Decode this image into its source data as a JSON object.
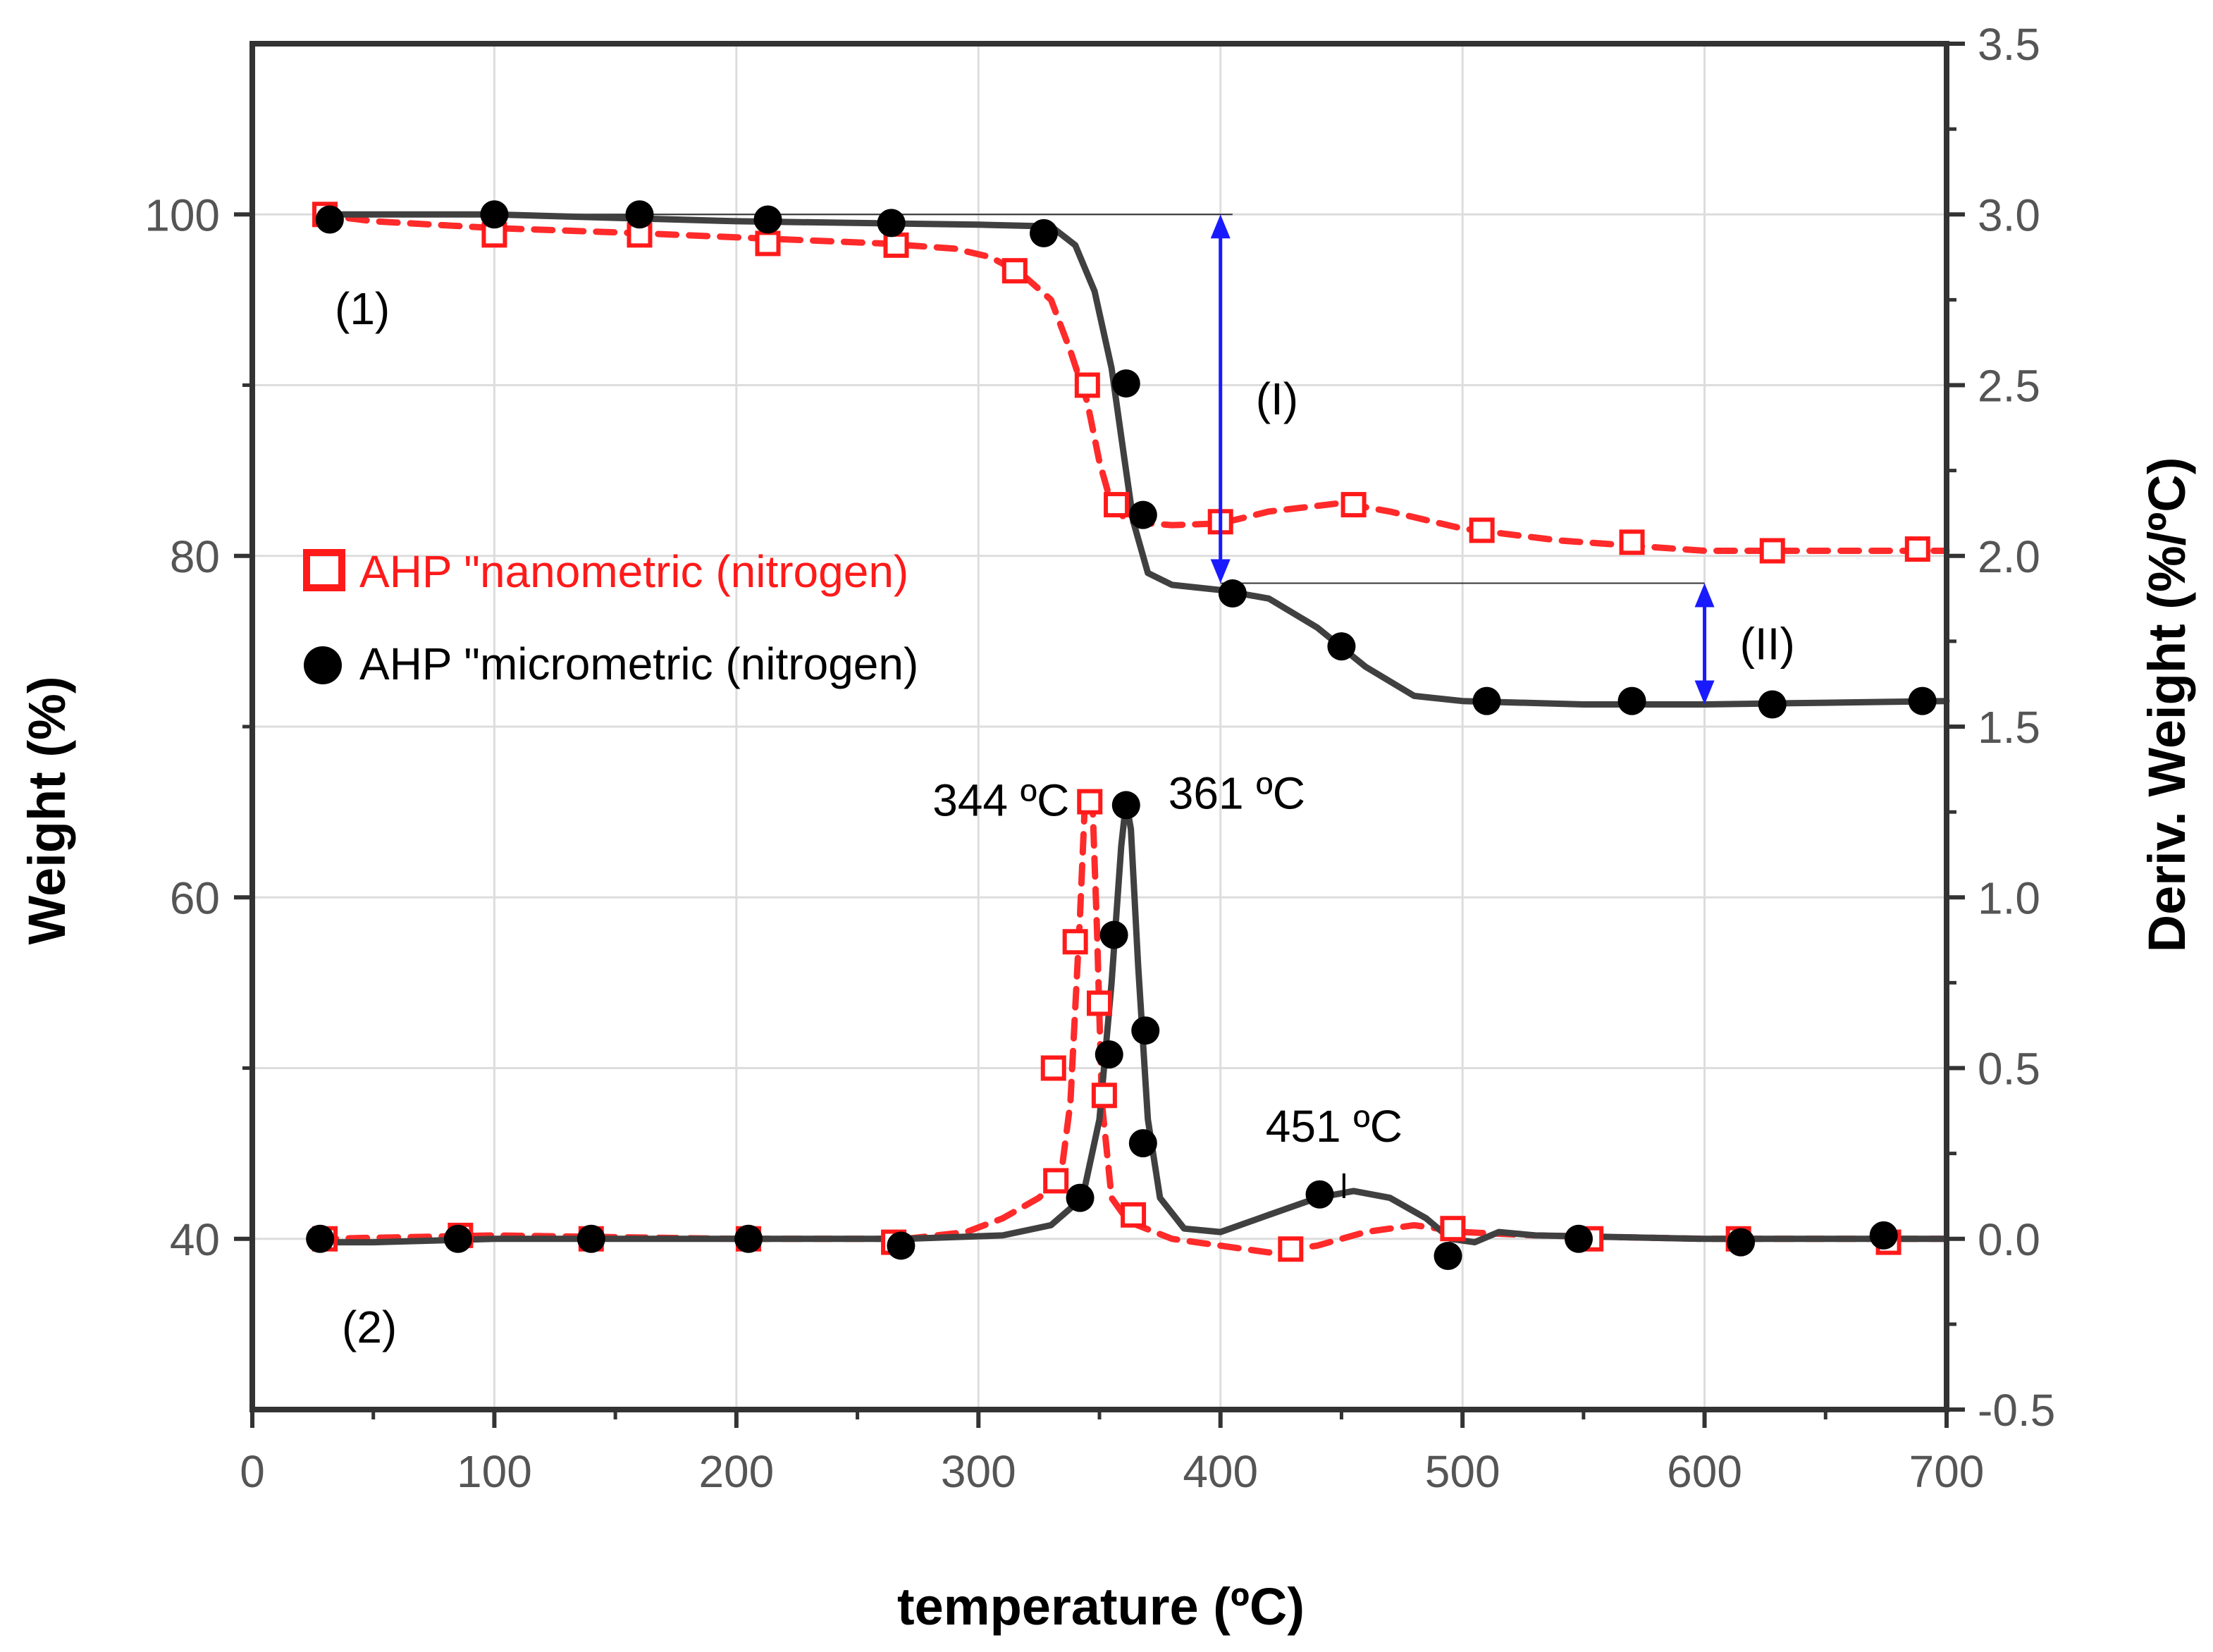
{
  "chart_data": {
    "type": "line",
    "xlabel": "temperature (ºC)",
    "ylabel_left": "Weight (%)",
    "ylabel_right": "Deriv. Weight (%/ºC)",
    "xlim": [
      0,
      700
    ],
    "ylim_left": [
      30,
      110
    ],
    "ylim_right": [
      -0.5,
      3.5
    ],
    "grid": true,
    "x_ticks": [
      "0",
      "100",
      "200",
      "300",
      "400",
      "500",
      "600",
      "700"
    ],
    "y_left_ticks": [
      "40",
      "60",
      "80",
      "100"
    ],
    "y_right_ticks": [
      "-0.5",
      "0.0",
      "0.5",
      "1.0",
      "1.5",
      "2.0",
      "2.5",
      "3.0",
      "3.5"
    ],
    "legend": {
      "position": "middle-left",
      "entries": [
        {
          "label": "AHP \"nanometric (nitrogen)",
          "marker": "open-square",
          "color": "#ff1a1a"
        },
        {
          "label": "AHP \"micrometric (nitrogen)",
          "marker": "filled-circle",
          "color": "#000000"
        }
      ]
    },
    "curve_labels": [
      "(1)",
      "(2)"
    ],
    "series": [
      {
        "name": "AHP nanometric (nitrogen) - weight",
        "axis": "left",
        "color": "#ff2a2a",
        "style": "dashed",
        "marker": "open-square",
        "line": [
          [
            27,
            100
          ],
          [
            50,
            99.6
          ],
          [
            100,
            99.2
          ],
          [
            160,
            98.9
          ],
          [
            210,
            98.6
          ],
          [
            260,
            98.3
          ],
          [
            290,
            98
          ],
          [
            305,
            97.5
          ],
          [
            318,
            96.5
          ],
          [
            330,
            95
          ],
          [
            338,
            92
          ],
          [
            345,
            89
          ],
          [
            350,
            85.5
          ],
          [
            355,
            83
          ],
          [
            362,
            82
          ],
          [
            380,
            81.8
          ],
          [
            400,
            81.9
          ],
          [
            420,
            82.6
          ],
          [
            450,
            83.1
          ],
          [
            470,
            82.6
          ],
          [
            500,
            81.6
          ],
          [
            540,
            80.9
          ],
          [
            570,
            80.6
          ],
          [
            600,
            80.3
          ],
          [
            630,
            80.3
          ],
          [
            660,
            80.3
          ],
          [
            700,
            80.3
          ]
        ],
        "points": [
          [
            30,
            100
          ],
          [
            100,
            98.8
          ],
          [
            160,
            98.8
          ],
          [
            213,
            98.3
          ],
          [
            266,
            98.2
          ],
          [
            315,
            96.7
          ],
          [
            345,
            90
          ],
          [
            357,
            83
          ],
          [
            400,
            82
          ],
          [
            455,
            83
          ],
          [
            508,
            81.5
          ],
          [
            570,
            80.8
          ],
          [
            628,
            80.3
          ],
          [
            688,
            80.4
          ]
        ]
      },
      {
        "name": "AHP micrometric (nitrogen) - weight",
        "axis": "left",
        "color": "#404040",
        "style": "solid",
        "marker": "filled-circle",
        "line": [
          [
            27,
            100
          ],
          [
            100,
            100
          ],
          [
            200,
            99.6
          ],
          [
            300,
            99.4
          ],
          [
            330,
            99.3
          ],
          [
            340,
            98.2
          ],
          [
            348,
            95.5
          ],
          [
            355,
            91
          ],
          [
            360,
            86
          ],
          [
            364,
            82
          ],
          [
            370,
            79
          ],
          [
            380,
            78.3
          ],
          [
            400,
            78
          ],
          [
            420,
            77.5
          ],
          [
            440,
            75.8
          ],
          [
            460,
            73.5
          ],
          [
            480,
            71.8
          ],
          [
            500,
            71.5
          ],
          [
            550,
            71.3
          ],
          [
            600,
            71.3
          ],
          [
            650,
            71.4
          ],
          [
            700,
            71.5
          ]
        ],
        "points": [
          [
            32,
            99.7
          ],
          [
            100,
            100
          ],
          [
            160,
            100
          ],
          [
            213,
            99.7
          ],
          [
            264,
            99.5
          ],
          [
            327,
            98.9
          ],
          [
            361,
            90.1
          ],
          [
            368,
            82.4
          ],
          [
            405,
            77.8
          ],
          [
            450,
            74.7
          ],
          [
            510,
            71.5
          ],
          [
            570,
            71.5
          ],
          [
            628,
            71.3
          ],
          [
            690,
            71.5
          ]
        ]
      },
      {
        "name": "AHP nanometric (nitrogen) - deriv.",
        "axis": "right",
        "color": "#ff2a2a",
        "style": "dashed",
        "marker": "open-square",
        "line": [
          [
            27,
            0
          ],
          [
            100,
            0.01
          ],
          [
            200,
            0
          ],
          [
            270,
            0
          ],
          [
            295,
            0.02
          ],
          [
            310,
            0.06
          ],
          [
            325,
            0.12
          ],
          [
            334,
            0.18
          ],
          [
            338,
            0.4
          ],
          [
            342,
            0.95
          ],
          [
            344,
            1.28
          ],
          [
            347,
            1.3
          ],
          [
            349,
            0.9
          ],
          [
            351,
            0.4
          ],
          [
            355,
            0.12
          ],
          [
            362,
            0.05
          ],
          [
            380,
            0
          ],
          [
            400,
            -0.02
          ],
          [
            420,
            -0.04
          ],
          [
            440,
            -0.02
          ],
          [
            460,
            0.02
          ],
          [
            480,
            0.04
          ],
          [
            500,
            0.02
          ],
          [
            530,
            0.01
          ],
          [
            600,
            0
          ],
          [
            700,
            0
          ]
        ],
        "points": [
          [
            30,
            0
          ],
          [
            86,
            0.01
          ],
          [
            140,
            0
          ],
          [
            205,
            0
          ],
          [
            265,
            -0.01
          ],
          [
            332,
            0.17
          ],
          [
            331,
            0.5
          ],
          [
            340,
            0.87
          ],
          [
            346,
            1.28
          ],
          [
            350,
            0.69
          ],
          [
            352,
            0.42
          ],
          [
            364,
            0.07
          ],
          [
            429,
            -0.03
          ],
          [
            496,
            0.03
          ],
          [
            553,
            0
          ],
          [
            614,
            0
          ],
          [
            676,
            -0.01
          ]
        ]
      },
      {
        "name": "AHP micrometric (nitrogen) - deriv.",
        "axis": "right",
        "color": "#404040",
        "style": "solid",
        "marker": "filled-circle",
        "line": [
          [
            27,
            -0.01
          ],
          [
            50,
            -0.01
          ],
          [
            100,
            0
          ],
          [
            200,
            0
          ],
          [
            270,
            0
          ],
          [
            310,
            0.01
          ],
          [
            330,
            0.04
          ],
          [
            343,
            0.12
          ],
          [
            350,
            0.35
          ],
          [
            355,
            0.75
          ],
          [
            359,
            1.15
          ],
          [
            361,
            1.28
          ],
          [
            363,
            1.2
          ],
          [
            366,
            0.8
          ],
          [
            370,
            0.35
          ],
          [
            375,
            0.12
          ],
          [
            385,
            0.03
          ],
          [
            400,
            0.02
          ],
          [
            420,
            0.07
          ],
          [
            440,
            0.12
          ],
          [
            455,
            0.14
          ],
          [
            470,
            0.12
          ],
          [
            485,
            0.06
          ],
          [
            495,
            0
          ],
          [
            505,
            -0.01
          ],
          [
            515,
            0.02
          ],
          [
            530,
            0.01
          ],
          [
            600,
            0
          ],
          [
            700,
            0
          ]
        ],
        "points": [
          [
            28,
            0
          ],
          [
            85,
            0
          ],
          [
            140,
            0
          ],
          [
            205,
            0
          ],
          [
            268,
            -0.02
          ],
          [
            342,
            0.12
          ],
          [
            354,
            0.54
          ],
          [
            356,
            0.89
          ],
          [
            361,
            1.27
          ],
          [
            369,
            0.61
          ],
          [
            368,
            0.28
          ],
          [
            441,
            0.13
          ],
          [
            494,
            -0.05
          ],
          [
            548,
            0
          ],
          [
            615,
            -0.01
          ],
          [
            674,
            0.01
          ]
        ]
      }
    ],
    "peak_annotations": [
      {
        "text": "344 ºC",
        "x": 344,
        "y": 1.28,
        "axis": "right"
      },
      {
        "text": "361 ºC",
        "x": 361,
        "y": 1.28,
        "axis": "right"
      },
      {
        "text": "451 ºC",
        "x": 451,
        "y": 0.14,
        "axis": "right"
      }
    ],
    "step_annotations": [
      {
        "label": "(I)",
        "x": 400,
        "y_from": 100,
        "y_to": 78.4,
        "color": "#1a1aff"
      },
      {
        "label": "(II)",
        "x": 600,
        "y_from": 78.4,
        "y_to": 71.3,
        "color": "#1a1aff"
      }
    ]
  }
}
